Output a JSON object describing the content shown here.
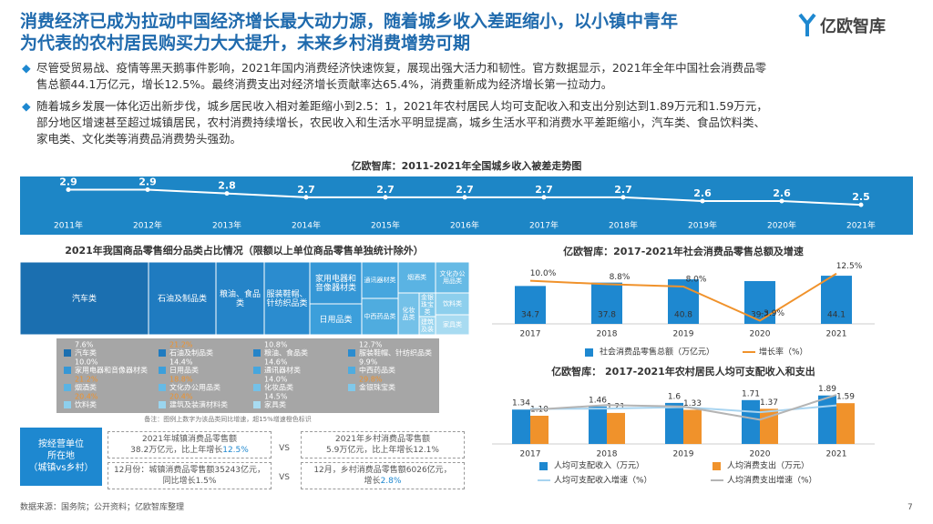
{
  "header": {
    "title_lines": [
      "消费经济已成为拉动中国经济增长最大动力源，随着城乡收入差距缩小，以小镇中青年",
      "为代表的农村居民购买力大大提升，未来乡村消费增势可期"
    ],
    "logo": "亿欧智库"
  },
  "bullets": [
    [
      "尽管受贸易战、疫情等黑天鹅事件影响，2021年国内消费经济快速恢复，展现出强大活力和韧性。官方数据显示，2021年全年中国社会消费品零",
      "售总额44.1万亿元，增长12.5%。最终消费支出对经济增长贡献率达65.4%，消费重新成为经济增长第一拉动力。"
    ],
    [
      "随着城乡发展一体化迈出新步伐，城乡居民收入相对差距缩小到2.5：1，2021年农村居民人均可支配收入和支出分别达到1.89万元和1.59万元，",
      "部分地区增速甚至超过城镇居民，农村消费持续增长，农民收入和生活水平明显提高，城乡生活水平和消费水平差距缩小，汽车类、食品饮料类、",
      "家电类、文化类等消费品消费势头强劲。"
    ]
  ],
  "chart_data": [
    {
      "type": "line",
      "title": "亿欧智库：2011-2021年全国城乡收入被差走势图",
      "categories": [
        "2011年",
        "2012年",
        "2013年",
        "2014年",
        "2015年",
        "2016年",
        "2017年",
        "2018年",
        "2019年",
        "2020年",
        "2021年"
      ],
      "values": [
        2.9,
        2.9,
        2.8,
        2.7,
        2.7,
        2.7,
        2.7,
        2.7,
        2.6,
        2.6,
        2.5
      ],
      "ylim": [
        2,
        3.2
      ],
      "color": "#ffffff"
    },
    {
      "type": "treemap",
      "title": "2021年我国商品零售细分品类占比情况（限额以上单位商品零售单独统计除外）",
      "categories": [
        "汽车类",
        "石油及制品类",
        "粮油、食品类",
        "服装鞋帽、针纺织品类",
        "家用电器和音像器材类",
        "日用品类",
        "通讯器材类",
        "中西药品类",
        "烟酒类",
        "文化办公用品类",
        "化妆品类",
        "金银珠宝类",
        "饮料类",
        "建筑及装潢材料类",
        "家具类"
      ],
      "values": [
        7.6,
        21.2,
        10.8,
        12.7,
        10.0,
        14.4,
        14.6,
        9.9,
        21.2,
        18.8,
        14.0,
        29.8,
        20.4,
        20.4,
        14.5
      ],
      "value_labels": [
        "7.6%",
        "21.2%",
        "10.8%",
        "12.7%",
        "10.0%",
        "14.4%",
        "14.6%",
        "9.9%",
        "21.2%",
        "18.8%",
        "14.0%",
        "29.8%",
        "20.4%",
        "20.4%",
        "14.5%"
      ],
      "label_colors": [
        "#ffffff",
        "#f0922b",
        "#ffffff",
        "#ffffff",
        "#ffffff",
        "#ffffff",
        "#ffffff",
        "#ffffff",
        "#f0922b",
        "#f0922b",
        "#ffffff",
        "#f0922b",
        "#f0922b",
        "#f0922b",
        "#ffffff"
      ],
      "note": "备注：图例上数字为该品类同比增速，超15%增速橙色标识"
    },
    {
      "type": "bar_line",
      "title": "亿欧智库：2017-2021年社会消费品零售总额及增速",
      "categories": [
        "2017",
        "2018",
        "2019",
        "2020",
        "2021"
      ],
      "ylim": [
        0,
        50
      ],
      "y2lim": [
        -5,
        14
      ],
      "bar_labels": "inside",
      "series": [
        {
          "name": "社会消费品零售总额（万亿元）",
          "color": "#1e88d0",
          "values": [
            34.7,
            37.8,
            40.8,
            39.2,
            44.1
          ]
        },
        {
          "name": "增长率（%）",
          "color": "#f0922b",
          "axis": "y2",
          "values": [
            10.0,
            8.8,
            8.0,
            -3.9,
            12.5
          ],
          "value_labels": [
            "10.0%",
            "8.8%",
            "8.0%",
            "-3.9%",
            "12.5%"
          ]
        }
      ]
    },
    {
      "type": "bar_line",
      "title": "亿欧智库： 2017-2021年农村居民人均可支配收入和支出",
      "categories": [
        "2017",
        "2018",
        "2019",
        "2020",
        "2021"
      ],
      "ylim": [
        0,
        2.2
      ],
      "y2lim": [
        -10,
        20
      ],
      "bar_labels": "above",
      "series": [
        {
          "name": "人均可支配收入（万元）",
          "color": "#1e88d0",
          "values": [
            1.34,
            1.46,
            1.6,
            1.71,
            1.89
          ]
        },
        {
          "name": "人均消费支出（万元）",
          "color": "#f0922b",
          "values": [
            1.1,
            1.21,
            1.33,
            1.37,
            1.59
          ],
          "value_labels": [
            "1.10",
            "1.21",
            "1.33",
            "1.37",
            "1.59"
          ]
        },
        {
          "name": "人均可支配收入增速（%）",
          "color": "#a8d4f0",
          "axis": "y2",
          "values": [
            8.6,
            8.8,
            9.6,
            6.9,
            10.5
          ]
        },
        {
          "name": "人均消费支出增速（%）",
          "color": "#b4b4b4",
          "axis": "y2",
          "values": [
            8.1,
            10.7,
            9.9,
            2.9,
            16.1
          ]
        }
      ]
    }
  ],
  "comparison": {
    "label_lines": [
      "按经营单位",
      "所在地",
      "（城镇vs乡村）"
    ],
    "vs": "VS",
    "boxes": [
      {
        "lines": [
          "2021年城镇消费品零售额",
          "38.2万亿元，比上年增长"
        ],
        "highlight": "12.5%"
      },
      {
        "lines": [
          "2021年乡村消费品零售额",
          "5.9万亿元，比上年增长12.1%"
        ]
      },
      {
        "lines": [
          "12月份：城镇消费品零售额35243亿元，",
          "同比增长1.5%"
        ]
      },
      {
        "lines": [
          "12月，乡村消费品零售额6026亿元，",
          "增长"
        ],
        "highlight": "2.8%"
      }
    ]
  },
  "footer": {
    "source": "数据来源：国务院；公开资料；亿欧智库整理",
    "page": "7"
  }
}
